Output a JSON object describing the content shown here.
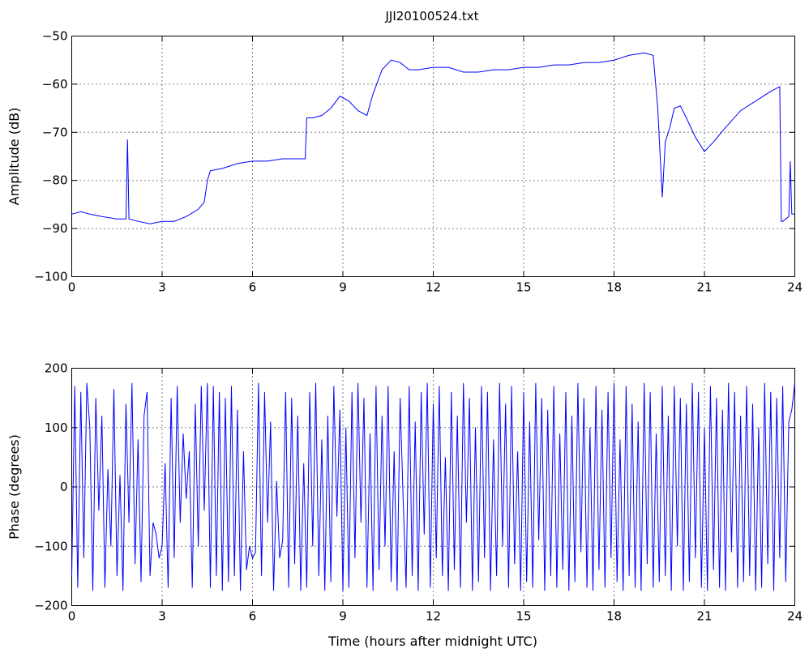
{
  "chart_data": [
    {
      "type": "line",
      "title": "JJI20100524.txt",
      "xlabel": "",
      "ylabel": "Amplitude (dB)",
      "xlim": [
        0,
        24
      ],
      "ylim": [
        -100,
        -50
      ],
      "xticks": [
        "0",
        "3",
        "6",
        "9",
        "12",
        "15",
        "18",
        "21",
        "24"
      ],
      "yticks": [
        "-50",
        "-60",
        "-70",
        "-80",
        "-90",
        "-100"
      ],
      "grid": true,
      "color": "#0000ff",
      "series": [
        {
          "x": [
            0,
            0.3,
            0.6,
            1.0,
            1.5,
            1.8,
            1.85,
            1.9,
            2.2,
            2.6,
            3.0,
            3.4,
            3.8,
            4.2,
            4.4,
            4.5,
            4.6,
            5.0,
            5.5,
            6.0,
            6.5,
            7.0,
            7.5,
            7.75,
            7.8,
            8.0,
            8.3,
            8.6,
            8.9,
            9.2,
            9.5,
            9.8,
            10.0,
            10.3,
            10.6,
            10.9,
            11.2,
            11.5,
            12.0,
            12.5,
            13.0,
            13.5,
            14.0,
            14.5,
            15.0,
            15.5,
            16.0,
            16.5,
            17.0,
            17.5,
            18.0,
            18.5,
            19.0,
            19.3,
            19.45,
            19.6,
            19.7,
            19.85,
            20.0,
            20.2,
            20.4,
            20.7,
            21.0,
            21.3,
            21.7,
            22.2,
            22.7,
            23.2,
            23.5,
            23.55,
            23.6,
            23.8,
            23.85,
            23.9,
            24.0
          ],
          "y": [
            -87,
            -86.5,
            -87,
            -87.5,
            -88,
            -88,
            -71.5,
            -88,
            -88.5,
            -89,
            -88.5,
            -88.5,
            -87.5,
            -86,
            -84.5,
            -80,
            -78,
            -77.5,
            -76.5,
            -76,
            -76,
            -75.5,
            -75.5,
            -75.5,
            -67,
            -67,
            -66.5,
            -65,
            -62.5,
            -63.5,
            -65.5,
            -66.5,
            -62,
            -57,
            -55,
            -55.5,
            -57,
            -57,
            -56.5,
            -56.5,
            -57.5,
            -57.5,
            -57,
            -57,
            -56.5,
            -56.5,
            -56,
            -56,
            -55.5,
            -55.5,
            -55,
            -54,
            -53.5,
            -54,
            -65,
            -83.5,
            -72,
            -69,
            -65,
            -64.5,
            -67,
            -71,
            -74,
            -72,
            -69,
            -65.5,
            -63.5,
            -61.5,
            -60.5,
            -88.5,
            -88.5,
            -87.5,
            -76,
            -87,
            -87
          ]
        }
      ]
    },
    {
      "type": "line",
      "title": "",
      "xlabel": "Time (hours after midnight UTC)",
      "ylabel": "Phase (degrees)",
      "xlim": [
        0,
        24
      ],
      "ylim": [
        -200,
        200
      ],
      "xticks": [
        "0",
        "3",
        "6",
        "9",
        "12",
        "15",
        "18",
        "21",
        "24"
      ],
      "yticks": [
        "200",
        "100",
        "0",
        "-100",
        "-200"
      ],
      "grid": true,
      "color": "#0000ff",
      "series": [
        {
          "x": [
            0,
            0.1,
            0.2,
            0.3,
            0.4,
            0.5,
            0.6,
            0.7,
            0.8,
            0.9,
            1.0,
            1.1,
            1.2,
            1.3,
            1.4,
            1.5,
            1.6,
            1.7,
            1.8,
            1.9,
            2.0,
            2.1,
            2.2,
            2.3,
            2.4,
            2.5,
            2.6,
            2.7,
            2.8,
            2.9,
            3.0,
            3.1,
            3.2,
            3.3,
            3.4,
            3.5,
            3.6,
            3.7,
            3.8,
            3.9,
            4.0,
            4.1,
            4.2,
            4.3,
            4.4,
            4.5,
            4.6,
            4.7,
            4.8,
            4.9,
            5.0,
            5.1,
            5.2,
            5.3,
            5.4,
            5.5,
            5.6,
            5.7,
            5.8,
            5.9,
            6.0,
            6.1,
            6.2,
            6.3,
            6.4,
            6.5,
            6.6,
            6.7,
            6.8,
            6.9,
            7.0,
            7.1,
            7.2,
            7.3,
            7.4,
            7.5,
            7.6,
            7.7,
            7.8,
            7.9,
            8.0,
            8.1,
            8.2,
            8.3,
            8.4,
            8.5,
            8.6,
            8.7,
            8.8,
            8.9,
            9.0,
            9.1,
            9.2,
            9.3,
            9.4,
            9.5,
            9.6,
            9.7,
            9.8,
            9.9,
            10.0,
            10.1,
            10.2,
            10.3,
            10.4,
            10.5,
            10.6,
            10.7,
            10.8,
            10.9,
            11.0,
            11.1,
            11.2,
            11.3,
            11.4,
            11.5,
            11.6,
            11.7,
            11.8,
            11.9,
            12.0,
            12.1,
            12.2,
            12.3,
            12.4,
            12.5,
            12.6,
            12.7,
            12.8,
            12.9,
            13.0,
            13.1,
            13.2,
            13.3,
            13.4,
            13.5,
            13.6,
            13.7,
            13.8,
            13.9,
            14.0,
            14.1,
            14.2,
            14.3,
            14.4,
            14.5,
            14.6,
            14.7,
            14.8,
            14.9,
            15.0,
            15.1,
            15.2,
            15.3,
            15.4,
            15.5,
            15.6,
            15.7,
            15.8,
            15.9,
            16.0,
            16.1,
            16.2,
            16.3,
            16.4,
            16.5,
            16.6,
            16.7,
            16.8,
            16.9,
            17.0,
            17.1,
            17.2,
            17.3,
            17.4,
            17.5,
            17.6,
            17.7,
            17.8,
            17.9,
            18.0,
            18.1,
            18.2,
            18.3,
            18.4,
            18.5,
            18.6,
            18.7,
            18.8,
            18.9,
            19.0,
            19.1,
            19.2,
            19.3,
            19.4,
            19.5,
            19.6,
            19.7,
            19.8,
            19.9,
            20.0,
            20.1,
            20.2,
            20.3,
            20.4,
            20.5,
            20.6,
            20.7,
            20.8,
            20.9,
            21.0,
            21.1,
            21.2,
            21.3,
            21.4,
            21.5,
            21.6,
            21.7,
            21.8,
            21.9,
            22.0,
            22.1,
            22.2,
            22.3,
            22.4,
            22.5,
            22.6,
            22.7,
            22.8,
            22.9,
            23.0,
            23.1,
            23.2,
            23.3,
            23.4,
            23.5,
            23.6,
            23.7,
            23.8,
            23.9,
            24.0
          ],
          "y": [
            -150,
            170,
            -170,
            160,
            -120,
            175,
            100,
            -175,
            150,
            -40,
            120,
            -170,
            30,
            -100,
            165,
            -150,
            20,
            -175,
            140,
            -60,
            175,
            -130,
            80,
            -160,
            120,
            160,
            -150,
            -60,
            -80,
            -120,
            -100,
            40,
            -170,
            150,
            -120,
            170,
            -60,
            90,
            -20,
            60,
            -170,
            140,
            -100,
            170,
            -40,
            175,
            -170,
            170,
            -150,
            160,
            -175,
            150,
            -160,
            170,
            -150,
            130,
            -175,
            60,
            -140,
            -100,
            -120,
            -110,
            175,
            -150,
            160,
            -60,
            110,
            -175,
            10,
            -120,
            -90,
            160,
            -170,
            150,
            -130,
            120,
            -175,
            40,
            -170,
            160,
            -100,
            175,
            -150,
            80,
            -175,
            120,
            -160,
            170,
            -50,
            130,
            -175,
            100,
            -170,
            160,
            -120,
            175,
            -60,
            150,
            -170,
            90,
            -175,
            170,
            -140,
            120,
            -100,
            170,
            -160,
            60,
            -175,
            150,
            -20,
            -170,
            170,
            -150,
            110,
            -175,
            160,
            -80,
            175,
            -170,
            140,
            -120,
            170,
            -150,
            50,
            -175,
            160,
            -140,
            120,
            -170,
            175,
            -60,
            150,
            -175,
            100,
            -160,
            170,
            -120,
            160,
            -175,
            80,
            -150,
            175,
            -100,
            140,
            -170,
            170,
            -130,
            60,
            -175,
            160,
            -160,
            110,
            -170,
            175,
            -90,
            150,
            -175,
            130,
            -150,
            170,
            -170,
            90,
            -140,
            160,
            -175,
            120,
            -160,
            175,
            -110,
            150,
            -170,
            100,
            -175,
            170,
            -140,
            130,
            -170,
            160,
            -120,
            175,
            -160,
            80,
            -175,
            170,
            -150,
            140,
            -170,
            110,
            -175,
            175,
            -130,
            160,
            -170,
            90,
            -160,
            170,
            -150,
            120,
            -175,
            170,
            -100,
            150,
            -175,
            140,
            -160,
            175,
            -120,
            160,
            -170,
            100,
            -175,
            170,
            -140,
            150,
            -170,
            130,
            -175,
            175,
            -110,
            160,
            -170,
            120,
            -160,
            170,
            -150,
            140,
            -175,
            100,
            -170,
            175,
            -130,
            160,
            -175,
            150,
            -120,
            170,
            -160,
            110,
            130,
            175
          ]
        }
      ]
    }
  ]
}
